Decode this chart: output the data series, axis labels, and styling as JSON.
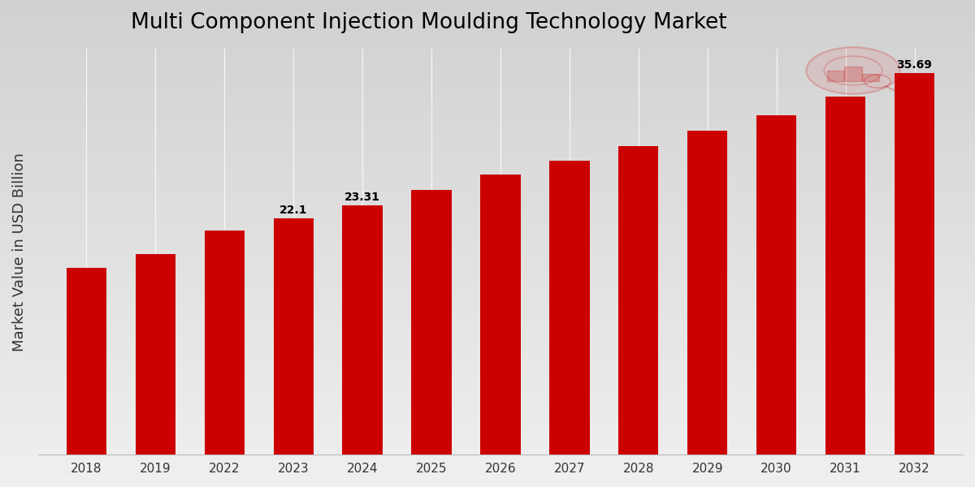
{
  "title": "Multi Component Injection Moulding Technology Market",
  "ylabel": "Market Value in USD Billion",
  "categories": [
    "2018",
    "2019",
    "2022",
    "2023",
    "2024",
    "2025",
    "2026",
    "2027",
    "2028",
    "2029",
    "2030",
    "2031",
    "2032"
  ],
  "values": [
    17.5,
    18.8,
    21.0,
    22.1,
    23.31,
    24.8,
    26.2,
    27.5,
    28.9,
    30.3,
    31.8,
    33.5,
    35.69
  ],
  "bar_color": "#cc0000",
  "label_values": {
    "2023": "22.1",
    "2024": "23.31",
    "2032": "35.69"
  },
  "background_color_top": "#d8d8d8",
  "background_color_bottom": "#f0f0f0",
  "ylim": [
    0,
    38
  ],
  "title_fontsize": 19,
  "label_fontsize": 10,
  "tick_fontsize": 11,
  "ylabel_fontsize": 13,
  "bar_width": 0.58
}
